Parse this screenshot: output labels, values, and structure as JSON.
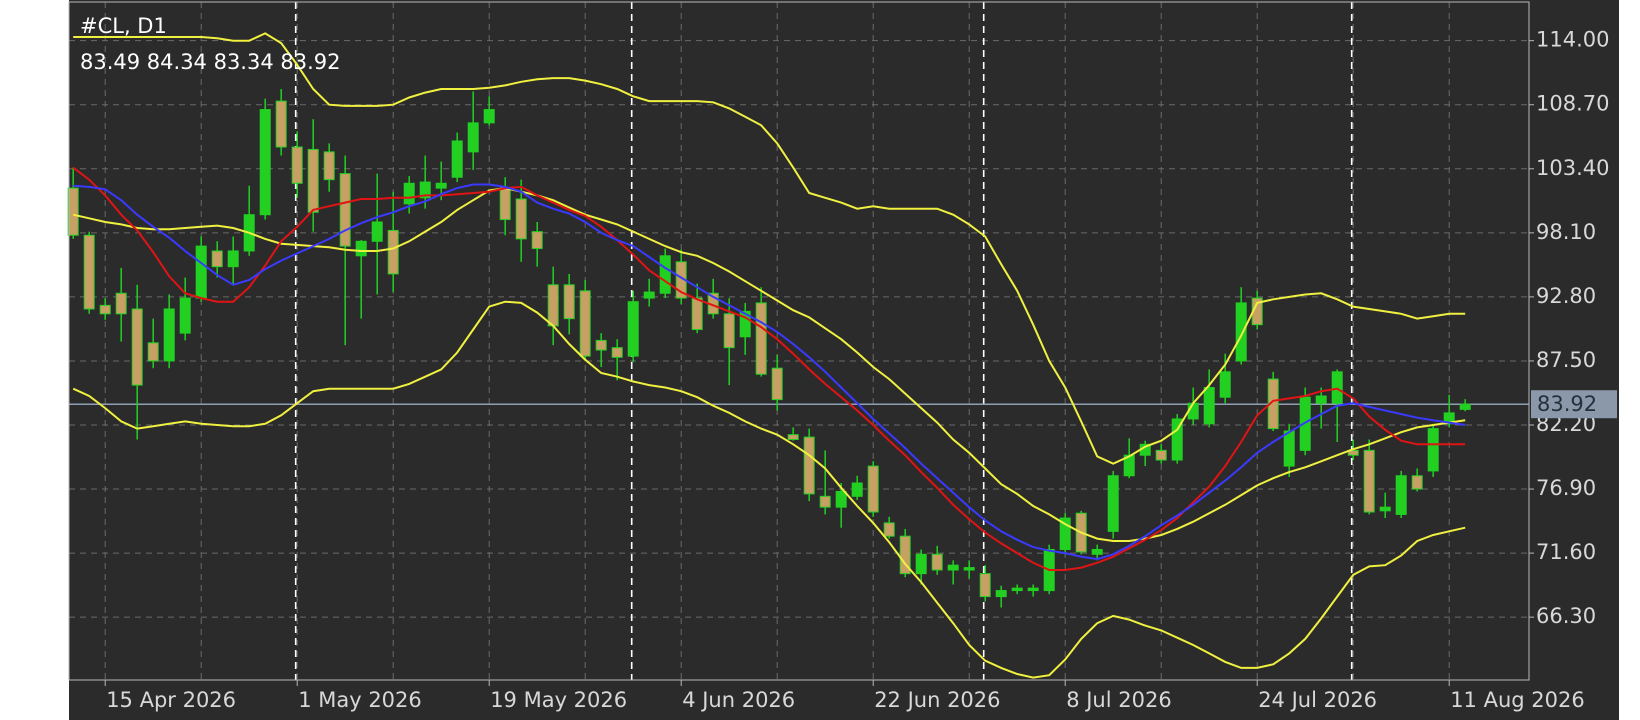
{
  "chart_data": {
    "type": "candlestick",
    "title": "#CL, D1",
    "ohlc_text": "83.49 84.34 83.34 83.92",
    "categories": [
      null,
      null,
      "15 Apr 2026",
      null,
      null,
      null,
      null,
      null,
      null,
      null,
      null,
      null,
      null,
      null,
      "1 May 2026",
      null,
      null,
      null,
      null,
      null,
      null,
      null,
      null,
      null,
      null,
      null,
      "19 May 2026",
      null,
      null,
      null,
      null,
      null,
      null,
      null,
      null,
      null,
      null,
      null,
      "4 Jun 2026",
      null,
      null,
      null,
      null,
      null,
      null,
      null,
      null,
      null,
      null,
      null,
      "22 Jun 2026",
      null,
      null,
      null,
      null,
      null,
      null,
      null,
      null,
      null,
      null,
      null,
      "8 Jul 2026",
      null,
      null,
      null,
      null,
      null,
      null,
      null,
      null,
      null,
      null,
      null,
      "24 Jul 2026",
      null,
      null,
      null,
      null,
      null,
      null,
      null,
      null,
      null,
      null,
      null,
      "11 Aug 2026",
      null
    ],
    "open": [
      101.8,
      97.9,
      92.1,
      93.1,
      91.8,
      89.0,
      87.5,
      89.8,
      92.7,
      96.6,
      95.3,
      96.6,
      99.6,
      109.0,
      105.2,
      105.0,
      104.8,
      103.0,
      96.2,
      97.4,
      98.3,
      100.5,
      101.0,
      101.8,
      102.7,
      104.8,
      107.2,
      101.8,
      100.9,
      98.2,
      93.8,
      93.8,
      93.3,
      89.2,
      88.6,
      87.9,
      92.7,
      93.1,
      95.7,
      92.7,
      93.1,
      91.4,
      89.5,
      92.3,
      86.9,
      81.4,
      81.2,
      76.3,
      75.4,
      76.3,
      78.8,
      74.1,
      73.0,
      69.9,
      71.5,
      70.2,
      70.2,
      69.9,
      68.0,
      68.5,
      68.5,
      68.5,
      71.9,
      74.9,
      71.5,
      73.4,
      78.0,
      79.7,
      80.1,
      79.3,
      82.7,
      82.3,
      84.5,
      87.5,
      92.7,
      86.0,
      78.8,
      80.1,
      84.0,
      84.0,
      80.1,
      80.1,
      75.1,
      74.8,
      78.0,
      78.4,
      82.3,
      83.49
    ],
    "high": [
      103.5,
      98.2,
      92.7,
      95.2,
      93.8,
      91.0,
      93.0,
      94.4,
      97.8,
      97.4,
      97.8,
      102.0,
      109.2,
      110.0,
      106.5,
      107.5,
      105.5,
      104.5,
      97.5,
      103.0,
      101.5,
      102.8,
      104.5,
      104.0,
      106.4,
      109.8,
      109.4,
      102.7,
      102.5,
      99.0,
      95.3,
      94.7,
      94.2,
      89.8,
      89.3,
      93.3,
      94.3,
      96.8,
      96.7,
      93.9,
      94.3,
      92.7,
      92.3,
      93.6,
      88.0,
      82.0,
      81.9,
      80.1,
      77.4,
      78.0,
      79.2,
      74.6,
      73.6,
      71.9,
      72.2,
      71.0,
      71.0,
      70.6,
      68.9,
      69.0,
      69.0,
      72.3,
      74.9,
      75.1,
      72.3,
      78.4,
      81.1,
      80.9,
      80.6,
      83.1,
      85.3,
      86.8,
      88.1,
      93.6,
      93.3,
      86.6,
      82.3,
      85.3,
      85.3,
      86.8,
      81.0,
      81.0,
      76.6,
      78.4,
      78.6,
      82.3,
      84.7,
      84.34
    ],
    "low": [
      97.6,
      91.4,
      90.9,
      89.1,
      81.0,
      86.9,
      86.9,
      89.2,
      92.4,
      94.4,
      93.8,
      96.2,
      99.2,
      104.5,
      101.0,
      98.2,
      101.5,
      88.8,
      91.0,
      93.0,
      93.2,
      99.7,
      100.1,
      100.8,
      102.3,
      103.3,
      107.0,
      97.9,
      95.7,
      95.3,
      88.8,
      89.7,
      87.5,
      87.0,
      85.9,
      87.4,
      92.0,
      92.7,
      92.2,
      89.8,
      91.0,
      85.5,
      88.0,
      86.2,
      83.4,
      80.9,
      75.9,
      74.8,
      73.7,
      76.0,
      74.6,
      72.8,
      69.6,
      69.0,
      69.8,
      69.0,
      69.5,
      67.6,
      67.1,
      68.2,
      68.0,
      68.2,
      71.5,
      71.5,
      71.0,
      72.8,
      77.8,
      78.8,
      79.0,
      79.0,
      82.2,
      82.0,
      84.0,
      87.2,
      90.1,
      81.7,
      77.9,
      79.7,
      81.9,
      80.8,
      79.3,
      74.8,
      74.5,
      74.5,
      76.7,
      77.9,
      82.0,
      83.34
    ],
    "close": [
      97.9,
      91.8,
      91.4,
      91.4,
      85.5,
      87.5,
      91.8,
      92.7,
      97.0,
      95.3,
      96.6,
      99.6,
      108.3,
      105.2,
      102.2,
      99.8,
      102.5,
      97.0,
      97.4,
      99.0,
      94.7,
      102.2,
      102.3,
      102.2,
      105.7,
      107.2,
      108.3,
      99.2,
      97.6,
      96.8,
      90.4,
      91.0,
      87.9,
      88.4,
      87.8,
      92.4,
      93.2,
      96.2,
      92.7,
      90.1,
      91.4,
      88.6,
      91.6,
      86.4,
      84.3,
      81.0,
      76.5,
      75.4,
      76.7,
      77.4,
      75.0,
      73.0,
      69.9,
      71.5,
      70.2,
      70.6,
      70.4,
      68.0,
      68.5,
      68.7,
      68.7,
      71.9,
      74.5,
      71.7,
      71.9,
      78.0,
      79.7,
      80.6,
      79.3,
      82.7,
      84.0,
      85.3,
      86.6,
      92.3,
      90.5,
      81.9,
      81.7,
      84.5,
      84.6,
      86.6,
      79.7,
      75.0,
      75.4,
      78.0,
      76.9,
      81.9,
      83.2,
      83.92
    ],
    "up_color": "#22d022",
    "down_color": "#c8a064",
    "wick_color": "#22d022",
    "overlays": [
      {
        "color": "#f0f040",
        "values": [
          114.3,
          114.3,
          114.3,
          114.3,
          114.3,
          114.3,
          114.3,
          114.3,
          114.3,
          114.2,
          114.0,
          114.0,
          114.6,
          113.8,
          112.0,
          110.0,
          108.7,
          108.6,
          108.6,
          108.6,
          108.7,
          109.3,
          109.7,
          110.0,
          110.0,
          110.0,
          110.1,
          110.3,
          110.6,
          110.8,
          110.9,
          110.9,
          110.7,
          110.4,
          110.0,
          109.4,
          109.0,
          109.0,
          109.0,
          109.0,
          108.9,
          108.4,
          107.7,
          107.0,
          105.5,
          103.5,
          101.4,
          101.0,
          100.6,
          100.1,
          100.3,
          100.1,
          100.1,
          100.1,
          100.1,
          99.6,
          98.8,
          97.8,
          95.5,
          93.3,
          90.5,
          87.5,
          85.3,
          82.5,
          79.6,
          79.0,
          79.6,
          80.4,
          80.9,
          81.8,
          84.0,
          85.5,
          87.2,
          89.6,
          92.3,
          92.6,
          92.8,
          93.0,
          93.1,
          92.6,
          92.0,
          91.8,
          91.6,
          91.4,
          91.0,
          91.2,
          91.4,
          91.4
        ]
      },
      {
        "color": "#f0f040",
        "values": [
          99.6,
          99.3,
          99.0,
          98.8,
          98.5,
          98.4,
          98.4,
          98.5,
          98.6,
          98.7,
          98.5,
          98.1,
          97.6,
          97.2,
          97.1,
          97.0,
          96.9,
          96.7,
          96.6,
          96.6,
          96.8,
          97.4,
          98.2,
          99.0,
          100.0,
          100.8,
          101.6,
          101.8,
          101.5,
          101.2,
          100.8,
          100.2,
          99.6,
          99.2,
          98.8,
          98.2,
          97.6,
          97.0,
          96.5,
          96.2,
          95.6,
          94.9,
          94.1,
          93.3,
          92.5,
          91.7,
          91.1,
          90.2,
          89.3,
          88.2,
          87.0,
          86.0,
          84.8,
          83.6,
          82.4,
          81.0,
          79.9,
          78.6,
          77.3,
          76.5,
          75.5,
          74.8,
          74.0,
          73.3,
          72.8,
          72.6,
          72.6,
          72.8,
          73.1,
          73.6,
          74.2,
          74.9,
          75.6,
          76.4,
          77.2,
          77.8,
          78.3,
          78.7,
          79.2,
          79.7,
          80.2,
          80.6,
          81.1,
          81.6,
          82.0,
          82.2,
          82.4,
          82.6
        ]
      },
      {
        "color": "#f0f040",
        "values": [
          85.2,
          84.6,
          83.6,
          82.5,
          81.9,
          82.1,
          82.3,
          82.5,
          82.3,
          82.2,
          82.1,
          82.1,
          82.3,
          83.0,
          84.0,
          85.0,
          85.2,
          85.2,
          85.2,
          85.2,
          85.2,
          85.6,
          86.2,
          86.8,
          88.2,
          90.1,
          92.0,
          92.4,
          92.3,
          91.5,
          90.4,
          88.9,
          87.6,
          86.5,
          86.2,
          85.8,
          85.5,
          85.3,
          85.0,
          84.5,
          83.8,
          83.2,
          82.5,
          81.9,
          81.4,
          80.6,
          79.7,
          78.6,
          77.0,
          75.5,
          74.1,
          72.5,
          70.7,
          69.2,
          67.5,
          65.8,
          64.0,
          62.7,
          62.1,
          61.6,
          61.3,
          61.5,
          62.8,
          64.5,
          65.8,
          66.4,
          66.1,
          65.6,
          65.2,
          64.6,
          64.0,
          63.3,
          62.6,
          62.1,
          62.1,
          62.4,
          63.3,
          64.5,
          66.2,
          68.0,
          69.8,
          70.5,
          70.6,
          71.4,
          72.6,
          73.1,
          73.4,
          73.7
        ]
      },
      {
        "color": "#e01414",
        "values": [
          103.5,
          102.5,
          101.2,
          99.6,
          98.3,
          96.5,
          94.5,
          93.1,
          92.7,
          92.4,
          92.4,
          93.6,
          95.4,
          97.4,
          98.6,
          100.0,
          100.3,
          100.6,
          100.9,
          100.9,
          101.0,
          101.0,
          101.2,
          101.2,
          101.3,
          101.4,
          101.5,
          101.8,
          101.9,
          101.2,
          100.6,
          100.0,
          99.5,
          98.6,
          97.5,
          96.3,
          95.0,
          94.1,
          93.2,
          92.6,
          92.1,
          91.6,
          91.1,
          90.3,
          89.3,
          88.1,
          86.8,
          85.6,
          84.5,
          83.4,
          82.2,
          80.9,
          79.7,
          78.3,
          77.0,
          75.6,
          74.4,
          73.3,
          72.4,
          71.6,
          70.8,
          70.2,
          70.2,
          70.4,
          70.8,
          71.3,
          72.0,
          72.7,
          73.5,
          74.5,
          75.8,
          77.1,
          78.8,
          80.8,
          83.0,
          84.2,
          84.4,
          84.6,
          85.0,
          85.2,
          84.4,
          82.9,
          81.8,
          80.9,
          80.6,
          80.6,
          80.6,
          80.6
        ]
      },
      {
        "color": "#3a3aff",
        "values": [
          102.0,
          101.9,
          101.7,
          100.8,
          99.6,
          98.6,
          97.7,
          96.6,
          95.6,
          94.6,
          93.8,
          94.2,
          95.1,
          95.8,
          96.4,
          97.0,
          97.6,
          98.3,
          98.9,
          99.4,
          99.8,
          100.3,
          100.7,
          101.3,
          101.8,
          102.1,
          102.1,
          101.9,
          101.5,
          100.6,
          100.1,
          99.7,
          99.0,
          98.1,
          97.5,
          97.0,
          96.1,
          95.2,
          94.4,
          93.6,
          92.8,
          92.1,
          91.4,
          90.7,
          89.9,
          88.9,
          87.8,
          86.6,
          85.3,
          84.0,
          82.7,
          81.5,
          80.3,
          79.0,
          77.8,
          76.6,
          75.4,
          74.3,
          73.4,
          72.7,
          72.1,
          71.8,
          71.6,
          71.3,
          71.1,
          71.5,
          72.2,
          73.0,
          73.9,
          74.7,
          75.6,
          76.6,
          77.6,
          78.7,
          79.9,
          80.8,
          81.6,
          82.4,
          83.1,
          83.8,
          84.0,
          83.7,
          83.4,
          83.1,
          82.8,
          82.6,
          82.4,
          82.2
        ]
      }
    ],
    "last_price": 83.92,
    "ylim": [
      61.1,
      117.2
    ],
    "yticks": [
      {
        "value": 114,
        "label": "114.00"
      },
      {
        "value": 108.7,
        "label": "108.70"
      },
      {
        "value": 103.4,
        "label": "103.40"
      },
      {
        "value": 98.1,
        "label": "98.10"
      },
      {
        "value": 92.8,
        "label": "92.80"
      },
      {
        "value": 87.5,
        "label": "87.50"
      },
      {
        "value": 82.2,
        "label": "82.20"
      },
      {
        "value": 76.9,
        "label": "76.90"
      },
      {
        "value": 71.6,
        "label": "71.60"
      },
      {
        "value": 66.3,
        "label": "66.30"
      }
    ],
    "grid": true
  }
}
